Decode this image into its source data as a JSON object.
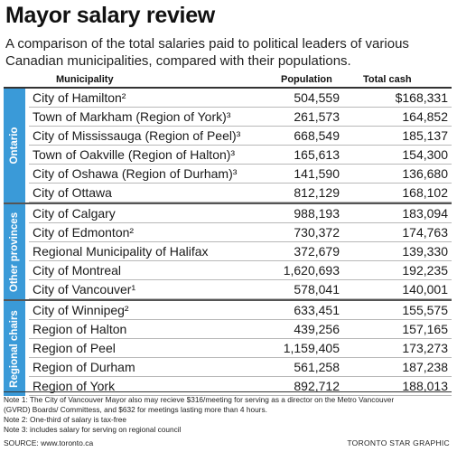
{
  "title": "Mayor salary review",
  "subtitle": "A comparison of the total salaries paid to political leaders of various Canadian municipalities, compared with their populations.",
  "headers": {
    "municipality": "Municipality",
    "population": "Population",
    "total_cash": "Total cash"
  },
  "groups": [
    {
      "label": "Ontario",
      "color": "#3a9ad8"
    },
    {
      "label": "Other provinces",
      "color": "#3a9ad8"
    },
    {
      "label": "Regional chairs",
      "color": "#3a9ad8"
    }
  ],
  "notes": [
    "Note 1: The City of Vancouver Mayor also may recieve $316/meeting for serving as a director on the Metro Vancouver",
    "(GVRD) Boards/ Committess, and $632 for meetings lasting more than 4 hours.",
    "Note 2: One-third of salary is tax-free",
    "Note 3: includes salary for serving on regional council"
  ],
  "source": "SOURCE: www.toronto.ca",
  "credit": "TORONTO STAR GRAPHIC",
  "chart_data": {
    "type": "table",
    "title": "Mayor salary review",
    "columns": [
      "Municipality",
      "Population",
      "Total cash"
    ],
    "rows": [
      {
        "group": "Ontario",
        "municipality": "City of Hamilton²",
        "population": "504,559",
        "total_cash": "$168,331"
      },
      {
        "group": "Ontario",
        "municipality": "Town of Markham (Region of York)³",
        "population": "261,573",
        "total_cash": "164,852"
      },
      {
        "group": "Ontario",
        "municipality": "City of Mississauga (Region of Peel)³",
        "population": "668,549",
        "total_cash": "185,137"
      },
      {
        "group": "Ontario",
        "municipality": "Town of Oakville (Region of Halton)³",
        "population": "165,613",
        "total_cash": "154,300"
      },
      {
        "group": "Ontario",
        "municipality": "City of Oshawa (Region of Durham)³",
        "population": "141,590",
        "total_cash": "136,680"
      },
      {
        "group": "Ontario",
        "municipality": "City of Ottawa",
        "population": "812,129",
        "total_cash": "168,102"
      },
      {
        "group": "Other provinces",
        "municipality": "City of Calgary",
        "population": "988,193",
        "total_cash": "183,094"
      },
      {
        "group": "Other provinces",
        "municipality": "City of Edmonton²",
        "population": "730,372",
        "total_cash": "174,763"
      },
      {
        "group": "Other provinces",
        "municipality": "Regional Municipality of Halifax",
        "population": "372,679",
        "total_cash": "139,330"
      },
      {
        "group": "Other provinces",
        "municipality": "City of Montreal",
        "population": "1,620,693",
        "total_cash": "192,235"
      },
      {
        "group": "Other provinces",
        "municipality": "City of Vancouver¹",
        "population": "578,041",
        "total_cash": "140,001"
      },
      {
        "group": "Regional chairs",
        "municipality": "City of Winnipeg²",
        "population": "633,451",
        "total_cash": "155,575"
      },
      {
        "group": "Regional chairs",
        "municipality": "Region of Halton",
        "population": "439,256",
        "total_cash": "157,165"
      },
      {
        "group": "Regional chairs",
        "municipality": "Region of Peel",
        "population": "1,159,405",
        "total_cash": "173,273"
      },
      {
        "group": "Regional chairs",
        "municipality": "Region of Durham",
        "population": "561,258",
        "total_cash": "187,238"
      },
      {
        "group": "Regional chairs",
        "municipality": "Region of York",
        "population": "892,712",
        "total_cash": "188,013"
      }
    ]
  }
}
